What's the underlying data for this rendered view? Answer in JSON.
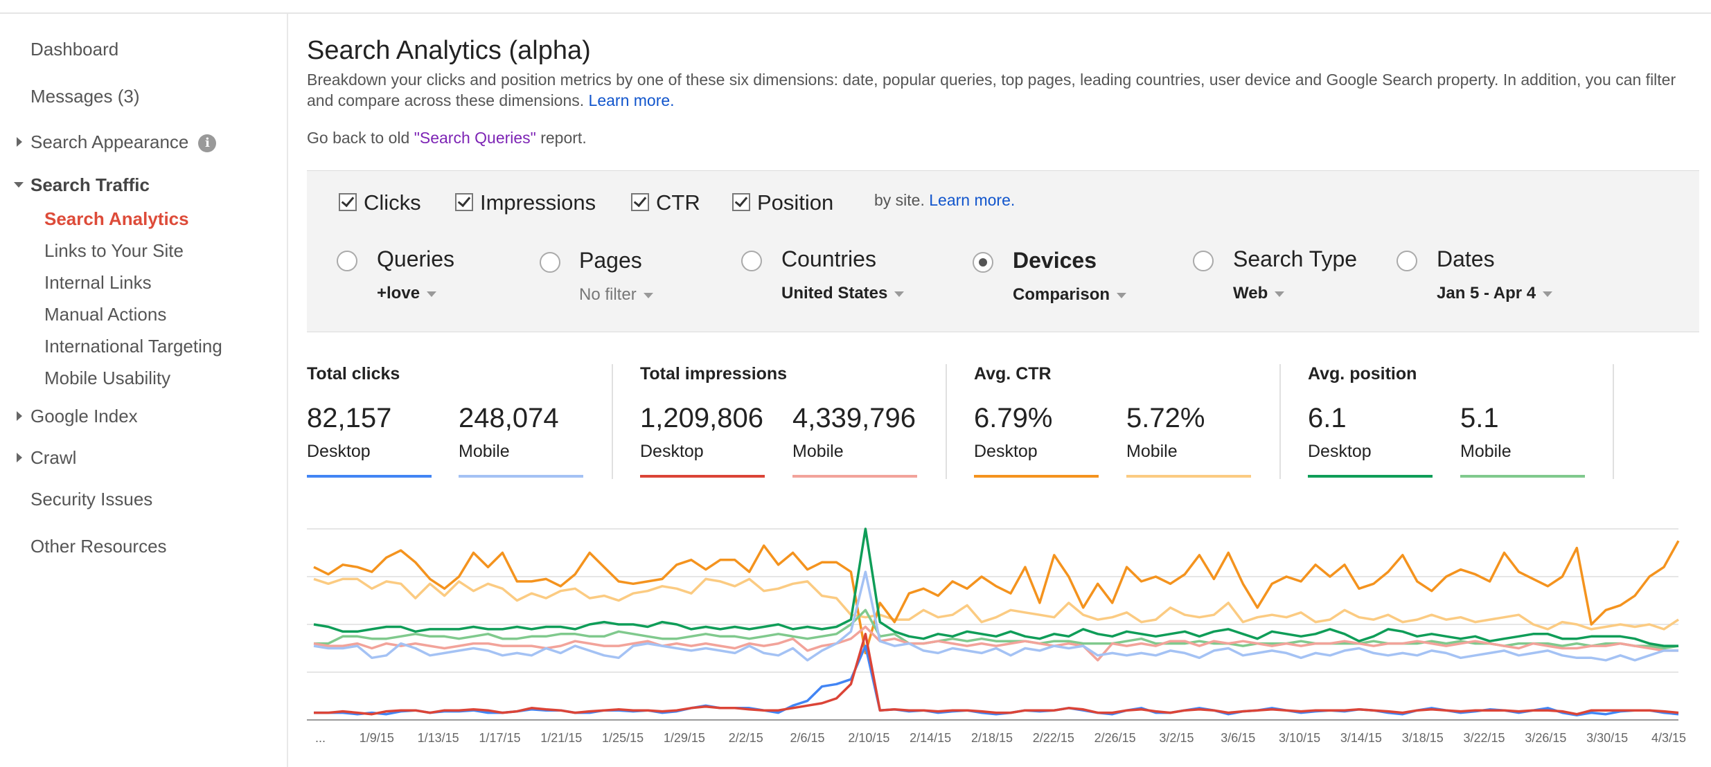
{
  "sidebar": {
    "items": [
      {
        "label": "Dashboard"
      },
      {
        "label": "Messages (3)"
      },
      {
        "label": "Search Appearance"
      },
      {
        "label": "Search Traffic"
      },
      {
        "label": "Search Analytics"
      },
      {
        "label": "Links to Your Site"
      },
      {
        "label": "Internal Links"
      },
      {
        "label": "Manual Actions"
      },
      {
        "label": "International Targeting"
      },
      {
        "label": "Mobile Usability"
      },
      {
        "label": "Google Index"
      },
      {
        "label": "Crawl"
      },
      {
        "label": "Security Issues"
      },
      {
        "label": "Other Resources"
      }
    ],
    "info_icon": "i"
  },
  "main": {
    "title": "Search Analytics (alpha)",
    "description": "Breakdown your clicks and position metrics by one of these six dimensions: date, popular queries, top pages, leading countries, user device and Google Search property. In addition, you can filter and compare across these dimensions.",
    "learn_more": "Learn more.",
    "old_report_prefix": "Go back to old ",
    "old_report_link": "\"Search Queries\"",
    "old_report_suffix": " report."
  },
  "metrics": {
    "clicks": "Clicks",
    "impressions": "Impressions",
    "ctr": "CTR",
    "position": "Position",
    "by_site": "by site.",
    "learn_more": "Learn more."
  },
  "dimensions": [
    {
      "label": "Queries",
      "value": "+love",
      "selected": false
    },
    {
      "label": "Pages",
      "value": "No filter",
      "selected": false
    },
    {
      "label": "Countries",
      "value": "United States",
      "selected": false
    },
    {
      "label": "Devices",
      "value": "Comparison",
      "selected": true
    },
    {
      "label": "Search Type",
      "value": "Web",
      "selected": false
    },
    {
      "label": "Dates",
      "value": "Jan 5 - Apr 4",
      "selected": false
    }
  ],
  "summary": [
    {
      "title": "Total clicks",
      "desktop_value": "82,157",
      "mobile_value": "248,074",
      "desktop_label": "Desktop",
      "mobile_label": "Mobile",
      "desktop_color": "#4285f4",
      "mobile_color": "#a4c2f4"
    },
    {
      "title": "Total impressions",
      "desktop_value": "1,209,806",
      "mobile_value": "4,339,796",
      "desktop_label": "Desktop",
      "mobile_label": "Mobile",
      "desktop_color": "#db4437",
      "mobile_color": "#f2a39a"
    },
    {
      "title": "Avg. CTR",
      "desktop_value": "6.79%",
      "mobile_value": "5.72%",
      "desktop_label": "Desktop",
      "mobile_label": "Mobile",
      "desktop_color": "#f4931e",
      "mobile_color": "#fbcb82"
    },
    {
      "title": "Avg. position",
      "desktop_value": "6.1",
      "mobile_value": "5.1",
      "desktop_label": "Desktop",
      "mobile_label": "Mobile",
      "desktop_color": "#0f9d58",
      "mobile_color": "#80c98d"
    }
  ],
  "chart_data": {
    "type": "line",
    "x_tick_labels": [
      "...",
      "1/9/15",
      "1/13/15",
      "1/17/15",
      "1/21/15",
      "1/25/15",
      "1/29/15",
      "2/2/15",
      "2/6/15",
      "2/10/15",
      "2/14/15",
      "2/18/15",
      "2/22/15",
      "2/26/15",
      "3/2/15",
      "3/6/15",
      "3/10/15",
      "3/14/15",
      "3/18/15",
      "3/22/15",
      "3/26/15",
      "3/30/15",
      "4/3/15"
    ],
    "y_range": [
      0,
      4
    ],
    "grid": true,
    "series": [
      {
        "name": "Avg. CTR Mobile",
        "color": "#fbcb82",
        "values": [
          2.95,
          2.85,
          2.95,
          2.95,
          2.75,
          2.9,
          2.85,
          2.55,
          2.85,
          2.6,
          2.9,
          2.7,
          2.85,
          2.75,
          2.5,
          2.65,
          2.55,
          2.7,
          2.75,
          2.55,
          2.6,
          2.5,
          2.65,
          2.7,
          2.8,
          2.75,
          2.65,
          2.95,
          2.9,
          2.8,
          2.95,
          2.7,
          2.75,
          2.85,
          2.9,
          2.6,
          2.55,
          2.2,
          2.15,
          2.2,
          2.1,
          2.1,
          2.3,
          2.15,
          2.2,
          2.4,
          2.05,
          2.15,
          2.3,
          2.25,
          2.2,
          2.15,
          2.45,
          2.2,
          2.1,
          2.15,
          2.25,
          2.05,
          2.1,
          2.35,
          2.2,
          2.15,
          2.2,
          2.45,
          2.05,
          2.15,
          2.2,
          2.15,
          2.25,
          2.05,
          2.1,
          2.3,
          2.15,
          2.1,
          2.2,
          2.05,
          2.1,
          2.2,
          2.1,
          2.15,
          2.05,
          2.1,
          2.15,
          2.2,
          2.0,
          1.9,
          2.05,
          2.0,
          1.9,
          1.95,
          2.0,
          1.95,
          2.0,
          1.9,
          2.1
        ]
      },
      {
        "name": "Avg. CTR Desktop",
        "color": "#f4931e",
        "values": [
          3.2,
          3.05,
          3.25,
          3.2,
          3.1,
          3.4,
          3.55,
          3.3,
          2.95,
          2.75,
          3.0,
          3.5,
          3.2,
          3.5,
          2.9,
          2.9,
          2.95,
          2.8,
          3.05,
          3.5,
          3.2,
          2.9,
          2.85,
          2.9,
          2.95,
          3.25,
          3.35,
          3.15,
          3.35,
          3.35,
          3.1,
          3.65,
          3.25,
          3.5,
          3.15,
          3.3,
          3.3,
          3.1,
          1.4,
          2.45,
          2.05,
          2.65,
          2.75,
          2.6,
          2.9,
          2.75,
          3.0,
          2.8,
          2.65,
          3.2,
          2.45,
          3.45,
          3.0,
          2.35,
          2.85,
          2.45,
          3.2,
          2.9,
          3.0,
          2.85,
          3.05,
          3.45,
          2.95,
          3.5,
          2.85,
          2.35,
          2.85,
          3.0,
          2.9,
          3.25,
          3.0,
          3.25,
          2.75,
          2.85,
          3.1,
          3.45,
          2.9,
          2.7,
          3.0,
          3.15,
          3.05,
          2.9,
          3.5,
          3.1,
          2.95,
          2.8,
          3.0,
          3.6,
          2.0,
          2.3,
          2.4,
          2.6,
          3.0,
          3.2,
          3.75
        ]
      },
      {
        "name": "Avg. position Mobile",
        "color": "#80c98d",
        "values": [
          1.6,
          1.6,
          1.75,
          1.75,
          1.7,
          1.7,
          1.75,
          1.8,
          1.75,
          1.75,
          1.7,
          1.75,
          1.8,
          1.7,
          1.7,
          1.75,
          1.75,
          1.8,
          1.8,
          1.75,
          1.75,
          1.85,
          1.8,
          1.75,
          1.7,
          1.7,
          1.75,
          1.8,
          1.75,
          1.75,
          1.7,
          1.75,
          1.8,
          1.75,
          1.7,
          1.75,
          1.8,
          2.0,
          2.3,
          1.75,
          1.8,
          1.6,
          1.6,
          1.65,
          1.7,
          1.65,
          1.7,
          1.65,
          1.65,
          1.65,
          1.6,
          1.65,
          1.65,
          1.6,
          1.6,
          1.6,
          1.65,
          1.7,
          1.6,
          1.6,
          1.6,
          1.65,
          1.6,
          1.6,
          1.55,
          1.6,
          1.6,
          1.6,
          1.65,
          1.6,
          1.6,
          1.6,
          1.6,
          1.65,
          1.6,
          1.6,
          1.6,
          1.65,
          1.6,
          1.65,
          1.6,
          1.6,
          1.55,
          1.6,
          1.6,
          1.6,
          1.55,
          1.6,
          1.55,
          1.6,
          1.6,
          1.55,
          1.55,
          1.5,
          1.55
        ]
      },
      {
        "name": "Avg. position Desktop",
        "color": "#0f9d58",
        "values": [
          2.0,
          1.95,
          1.85,
          1.85,
          1.9,
          1.95,
          1.95,
          1.85,
          1.9,
          1.9,
          1.9,
          1.95,
          1.9,
          1.9,
          1.95,
          1.9,
          1.95,
          1.95,
          1.9,
          2.0,
          2.05,
          2.0,
          2.0,
          1.95,
          2.05,
          2.0,
          1.9,
          1.95,
          1.9,
          1.95,
          1.9,
          1.95,
          2.0,
          1.9,
          1.95,
          1.9,
          1.95,
          2.1,
          4.0,
          2.05,
          1.85,
          1.75,
          1.7,
          1.8,
          1.75,
          1.85,
          1.8,
          1.75,
          1.85,
          1.75,
          1.7,
          1.8,
          1.75,
          1.9,
          1.8,
          1.75,
          1.85,
          1.8,
          1.75,
          1.8,
          1.85,
          1.75,
          1.85,
          1.9,
          1.8,
          1.7,
          1.85,
          1.8,
          1.75,
          1.8,
          1.9,
          1.8,
          1.65,
          1.75,
          1.9,
          1.85,
          1.75,
          1.8,
          1.75,
          1.7,
          1.75,
          1.65,
          1.7,
          1.75,
          1.8,
          1.8,
          1.7,
          1.7,
          1.75,
          1.75,
          1.75,
          1.7,
          1.6,
          1.55,
          1.55
        ]
      },
      {
        "name": "Total impressions Mobile",
        "color": "#f2a39a",
        "values": [
          1.6,
          1.55,
          1.55,
          1.6,
          1.5,
          1.6,
          1.55,
          1.6,
          1.55,
          1.5,
          1.55,
          1.6,
          1.6,
          1.55,
          1.55,
          1.55,
          1.5,
          1.55,
          1.65,
          1.6,
          1.55,
          1.55,
          1.6,
          1.65,
          1.55,
          1.6,
          1.55,
          1.6,
          1.55,
          1.5,
          1.6,
          1.55,
          1.6,
          1.7,
          1.45,
          1.55,
          1.6,
          1.7,
          1.95,
          1.65,
          1.7,
          1.6,
          1.6,
          1.65,
          1.6,
          1.55,
          1.6,
          1.55,
          1.6,
          1.65,
          1.6,
          1.55,
          1.6,
          1.55,
          1.25,
          1.6,
          1.55,
          1.6,
          1.55,
          1.65,
          1.65,
          1.55,
          1.65,
          1.6,
          1.65,
          1.6,
          1.55,
          1.6,
          1.55,
          1.6,
          1.6,
          1.65,
          1.6,
          1.55,
          1.6,
          1.6,
          1.65,
          1.6,
          1.55,
          1.6,
          1.65,
          1.6,
          1.55,
          1.5,
          1.6,
          1.55,
          1.5,
          1.5,
          1.55,
          1.55,
          1.6,
          1.55,
          1.5,
          1.45,
          1.45
        ]
      },
      {
        "name": "Total clicks Mobile",
        "color": "#a4c2f4",
        "values": [
          1.55,
          1.5,
          1.5,
          1.55,
          1.3,
          1.35,
          1.6,
          1.5,
          1.35,
          1.4,
          1.45,
          1.5,
          1.45,
          1.35,
          1.4,
          1.35,
          1.5,
          1.4,
          1.55,
          1.45,
          1.35,
          1.3,
          1.55,
          1.6,
          1.55,
          1.5,
          1.45,
          1.5,
          1.45,
          1.4,
          1.55,
          1.4,
          1.35,
          1.5,
          1.25,
          1.45,
          1.6,
          1.85,
          3.1,
          1.65,
          1.55,
          1.6,
          1.45,
          1.4,
          1.5,
          1.45,
          1.4,
          1.5,
          1.35,
          1.5,
          1.45,
          1.55,
          1.5,
          1.55,
          1.35,
          1.4,
          1.35,
          1.4,
          1.35,
          1.45,
          1.4,
          1.3,
          1.45,
          1.5,
          1.35,
          1.4,
          1.45,
          1.4,
          1.3,
          1.4,
          1.35,
          1.45,
          1.5,
          1.4,
          1.35,
          1.4,
          1.35,
          1.45,
          1.4,
          1.3,
          1.35,
          1.4,
          1.45,
          1.35,
          1.4,
          1.45,
          1.35,
          1.3,
          1.3,
          1.25,
          1.35,
          1.25,
          1.35,
          1.45,
          1.45
        ]
      },
      {
        "name": "Total clicks Desktop",
        "color": "#4285f4",
        "values": [
          0.15,
          0.15,
          0.15,
          0.12,
          0.15,
          0.12,
          0.18,
          0.2,
          0.15,
          0.18,
          0.18,
          0.2,
          0.15,
          0.15,
          0.18,
          0.22,
          0.2,
          0.2,
          0.15,
          0.15,
          0.2,
          0.2,
          0.18,
          0.2,
          0.15,
          0.18,
          0.25,
          0.3,
          0.25,
          0.25,
          0.25,
          0.2,
          0.15,
          0.3,
          0.4,
          0.7,
          0.75,
          0.85,
          1.55,
          0.2,
          0.22,
          0.18,
          0.2,
          0.15,
          0.18,
          0.2,
          0.15,
          0.12,
          0.15,
          0.2,
          0.18,
          0.2,
          0.25,
          0.2,
          0.15,
          0.12,
          0.2,
          0.25,
          0.15,
          0.15,
          0.2,
          0.25,
          0.2,
          0.12,
          0.18,
          0.2,
          0.25,
          0.2,
          0.15,
          0.18,
          0.2,
          0.18,
          0.22,
          0.2,
          0.15,
          0.12,
          0.2,
          0.25,
          0.2,
          0.15,
          0.18,
          0.22,
          0.2,
          0.15,
          0.2,
          0.25,
          0.15,
          0.1,
          0.15,
          0.12,
          0.18,
          0.2,
          0.2,
          0.15,
          0.12
        ]
      },
      {
        "name": "Total impressions Desktop",
        "color": "#db4437",
        "values": [
          0.15,
          0.15,
          0.18,
          0.15,
          0.12,
          0.18,
          0.2,
          0.2,
          0.15,
          0.2,
          0.2,
          0.22,
          0.2,
          0.15,
          0.18,
          0.25,
          0.22,
          0.2,
          0.15,
          0.18,
          0.2,
          0.22,
          0.2,
          0.2,
          0.18,
          0.2,
          0.25,
          0.28,
          0.25,
          0.25,
          0.22,
          0.2,
          0.2,
          0.25,
          0.3,
          0.35,
          0.45,
          0.75,
          1.8,
          0.2,
          0.22,
          0.2,
          0.2,
          0.18,
          0.2,
          0.2,
          0.18,
          0.15,
          0.15,
          0.2,
          0.2,
          0.2,
          0.25,
          0.22,
          0.15,
          0.15,
          0.2,
          0.22,
          0.18,
          0.15,
          0.2,
          0.22,
          0.2,
          0.15,
          0.18,
          0.2,
          0.22,
          0.2,
          0.18,
          0.2,
          0.2,
          0.2,
          0.22,
          0.2,
          0.18,
          0.15,
          0.2,
          0.22,
          0.2,
          0.18,
          0.2,
          0.2,
          0.2,
          0.18,
          0.2,
          0.2,
          0.18,
          0.12,
          0.2,
          0.2,
          0.2,
          0.2,
          0.2,
          0.18,
          0.15
        ]
      }
    ]
  }
}
